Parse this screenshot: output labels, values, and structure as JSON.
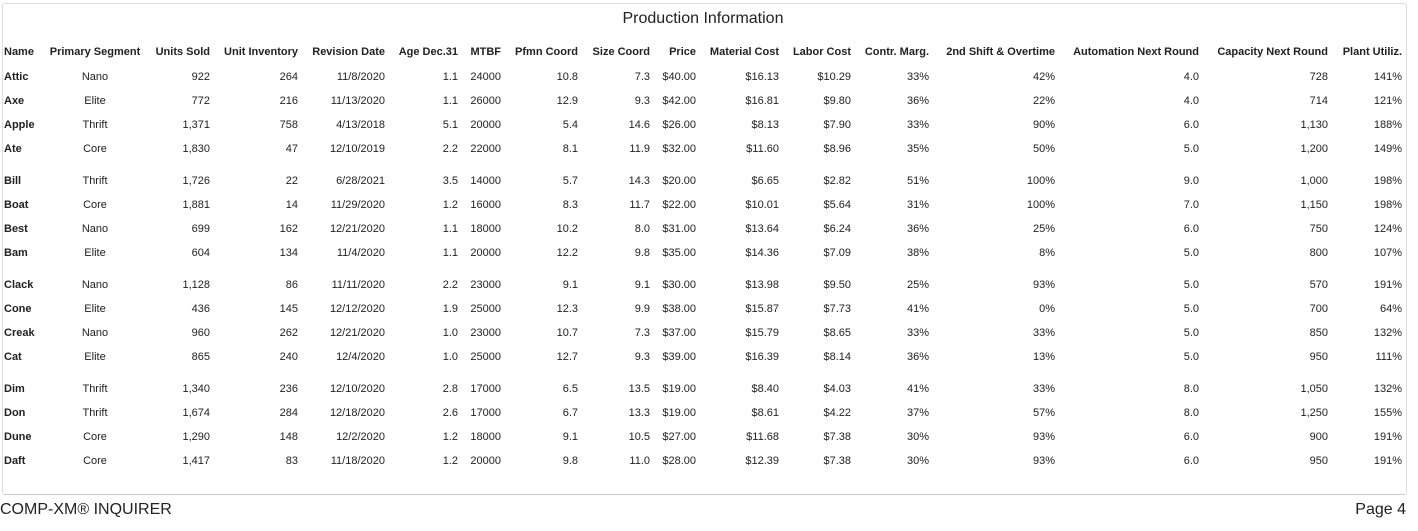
{
  "title": "Production Information",
  "table": {
    "columns": [
      "Name",
      "Primary Segment",
      "Units Sold",
      "Unit Inventory",
      "Revision Date",
      "Age Dec.31",
      "MTBF",
      "Pfmn Coord",
      "Size Coord",
      "Price",
      "Material Cost",
      "Labor Cost",
      "Contr. Marg.",
      "2nd Shift & Overtime",
      "Automation Next Round",
      "Capacity Next Round",
      "Plant Utiliz."
    ],
    "groups": [
      [
        [
          "Attic",
          "Nano",
          "922",
          "264",
          "11/8/2020",
          "1.1",
          "24000",
          "10.8",
          "7.3",
          "$40.00",
          "$16.13",
          "$10.29",
          "33%",
          "42%",
          "4.0",
          "728",
          "141%"
        ],
        [
          "Axe",
          "Elite",
          "772",
          "216",
          "11/13/2020",
          "1.1",
          "26000",
          "12.9",
          "9.3",
          "$42.00",
          "$16.81",
          "$9.80",
          "36%",
          "22%",
          "4.0",
          "714",
          "121%"
        ],
        [
          "Apple",
          "Thrift",
          "1,371",
          "758",
          "4/13/2018",
          "5.1",
          "20000",
          "5.4",
          "14.6",
          "$26.00",
          "$8.13",
          "$7.90",
          "33%",
          "90%",
          "6.0",
          "1,130",
          "188%"
        ],
        [
          "Ate",
          "Core",
          "1,830",
          "47",
          "12/10/2019",
          "2.2",
          "22000",
          "8.1",
          "11.9",
          "$32.00",
          "$11.60",
          "$8.96",
          "35%",
          "50%",
          "5.0",
          "1,200",
          "149%"
        ]
      ],
      [
        [
          "Bill",
          "Thrift",
          "1,726",
          "22",
          "6/28/2021",
          "3.5",
          "14000",
          "5.7",
          "14.3",
          "$20.00",
          "$6.65",
          "$2.82",
          "51%",
          "100%",
          "9.0",
          "1,000",
          "198%"
        ],
        [
          "Boat",
          "Core",
          "1,881",
          "14",
          "11/29/2020",
          "1.2",
          "16000",
          "8.3",
          "11.7",
          "$22.00",
          "$10.01",
          "$5.64",
          "31%",
          "100%",
          "7.0",
          "1,150",
          "198%"
        ],
        [
          "Best",
          "Nano",
          "699",
          "162",
          "12/21/2020",
          "1.1",
          "18000",
          "10.2",
          "8.0",
          "$31.00",
          "$13.64",
          "$6.24",
          "36%",
          "25%",
          "6.0",
          "750",
          "124%"
        ],
        [
          "Bam",
          "Elite",
          "604",
          "134",
          "11/4/2020",
          "1.1",
          "20000",
          "12.2",
          "9.8",
          "$35.00",
          "$14.36",
          "$7.09",
          "38%",
          "8%",
          "5.0",
          "800",
          "107%"
        ]
      ],
      [
        [
          "Clack",
          "Nano",
          "1,128",
          "86",
          "11/11/2020",
          "2.2",
          "23000",
          "9.1",
          "9.1",
          "$30.00",
          "$13.98",
          "$9.50",
          "25%",
          "93%",
          "5.0",
          "570",
          "191%"
        ],
        [
          "Cone",
          "Elite",
          "436",
          "145",
          "12/12/2020",
          "1.9",
          "25000",
          "12.3",
          "9.9",
          "$38.00",
          "$15.87",
          "$7.73",
          "41%",
          "0%",
          "5.0",
          "700",
          "64%"
        ],
        [
          "Creak",
          "Nano",
          "960",
          "262",
          "12/21/2020",
          "1.0",
          "23000",
          "10.7",
          "7.3",
          "$37.00",
          "$15.79",
          "$8.65",
          "33%",
          "33%",
          "5.0",
          "850",
          "132%"
        ],
        [
          "Cat",
          "Elite",
          "865",
          "240",
          "12/4/2020",
          "1.0",
          "25000",
          "12.7",
          "9.3",
          "$39.00",
          "$16.39",
          "$8.14",
          "36%",
          "13%",
          "5.0",
          "950",
          "111%"
        ]
      ],
      [
        [
          "Dim",
          "Thrift",
          "1,340",
          "236",
          "12/10/2020",
          "2.8",
          "17000",
          "6.5",
          "13.5",
          "$19.00",
          "$8.40",
          "$4.03",
          "41%",
          "33%",
          "8.0",
          "1,050",
          "132%"
        ],
        [
          "Don",
          "Thrift",
          "1,674",
          "284",
          "12/18/2020",
          "2.6",
          "17000",
          "6.7",
          "13.3",
          "$19.00",
          "$8.61",
          "$4.22",
          "37%",
          "57%",
          "8.0",
          "1,250",
          "155%"
        ],
        [
          "Dune",
          "Core",
          "1,290",
          "148",
          "12/2/2020",
          "1.2",
          "18000",
          "9.1",
          "10.5",
          "$27.00",
          "$11.68",
          "$7.38",
          "30%",
          "93%",
          "6.0",
          "900",
          "191%"
        ],
        [
          "Daft",
          "Core",
          "1,417",
          "83",
          "11/18/2020",
          "1.2",
          "20000",
          "9.8",
          "11.0",
          "$28.00",
          "$12.39",
          "$7.38",
          "30%",
          "93%",
          "6.0",
          "950",
          "191%"
        ]
      ]
    ]
  },
  "footer": {
    "left": "COMP-XM® INQUIRER",
    "right": "Page 4"
  }
}
